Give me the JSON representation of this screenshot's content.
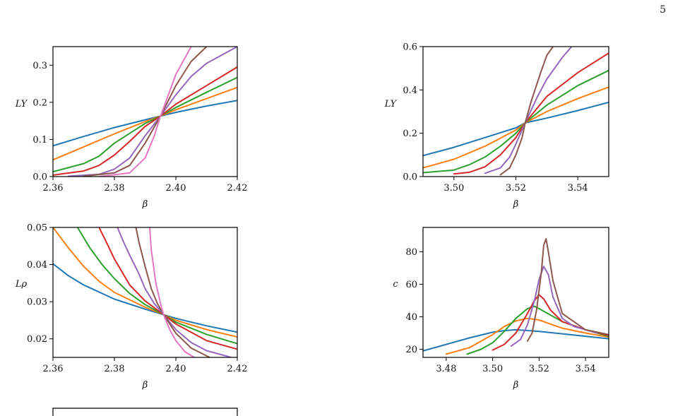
{
  "page": {
    "number": "5"
  },
  "colors": [
    "#1f77b4",
    "#ff7f0e",
    "#2ca02c",
    "#d62728",
    "#9467bd",
    "#8c564b",
    "#e377c2"
  ],
  "chart_data": [
    {
      "id": "top-left",
      "type": "line",
      "xlabel": "β",
      "ylabel": "LY",
      "xlim": [
        2.36,
        2.42
      ],
      "ylim": [
        0.0,
        0.35
      ],
      "xticks": [
        2.36,
        2.38,
        2.4,
        2.42
      ],
      "xtick_labels": [
        "2.36",
        "2.38",
        "2.40",
        "2.42"
      ],
      "yticks": [
        0.0,
        0.1,
        0.2,
        0.3
      ],
      "ytick_labels": [
        "0.0",
        "0.1",
        "0.2",
        "0.3"
      ],
      "series": [
        {
          "color": "#1f77b4",
          "x": [
            2.36,
            2.37,
            2.38,
            2.39,
            2.395,
            2.4,
            2.41,
            2.42
          ],
          "y": [
            0.083,
            0.108,
            0.132,
            0.153,
            0.163,
            0.173,
            0.19,
            0.205
          ]
        },
        {
          "color": "#ff7f0e",
          "x": [
            2.36,
            2.37,
            2.38,
            2.39,
            2.395,
            2.4,
            2.41,
            2.42
          ],
          "y": [
            0.045,
            0.08,
            0.115,
            0.148,
            0.163,
            0.18,
            0.21,
            0.24
          ]
        },
        {
          "color": "#2ca02c",
          "x": [
            2.36,
            2.37,
            2.375,
            2.38,
            2.39,
            2.395,
            2.4,
            2.41,
            2.42
          ],
          "y": [
            0.013,
            0.035,
            0.055,
            0.09,
            0.143,
            0.163,
            0.186,
            0.227,
            0.267
          ]
        },
        {
          "color": "#d62728",
          "x": [
            2.36,
            2.37,
            2.375,
            2.38,
            2.385,
            2.39,
            2.395,
            2.4,
            2.41,
            2.42
          ],
          "y": [
            0.004,
            0.015,
            0.03,
            0.058,
            0.095,
            0.135,
            0.163,
            0.195,
            0.245,
            0.295
          ]
        },
        {
          "color": "#9467bd",
          "x": [
            2.365,
            2.375,
            2.38,
            2.385,
            2.39,
            2.395,
            2.4,
            2.405,
            2.41,
            2.42
          ],
          "y": [
            0.001,
            0.006,
            0.02,
            0.05,
            0.11,
            0.163,
            0.22,
            0.27,
            0.305,
            0.35
          ]
        },
        {
          "color": "#8c564b",
          "x": [
            2.37,
            2.38,
            2.385,
            2.39,
            2.395,
            2.4,
            2.405,
            2.41
          ],
          "y": [
            0.001,
            0.01,
            0.03,
            0.09,
            0.163,
            0.245,
            0.31,
            0.35
          ]
        },
        {
          "color": "#e377c2",
          "x": [
            2.375,
            2.385,
            2.39,
            2.393,
            2.395,
            2.398,
            2.4,
            2.405
          ],
          "y": [
            0.0,
            0.01,
            0.05,
            0.11,
            0.163,
            0.23,
            0.275,
            0.35
          ]
        }
      ]
    },
    {
      "id": "top-right",
      "type": "line",
      "xlabel": "β",
      "ylabel": "LY",
      "xlim": [
        3.49,
        3.55
      ],
      "ylim": [
        0.0,
        0.6
      ],
      "xticks": [
        3.5,
        3.52,
        3.54
      ],
      "xtick_labels": [
        "3.50",
        "3.52",
        "3.54"
      ],
      "yticks": [
        0.0,
        0.2,
        0.4,
        0.6
      ],
      "ytick_labels": [
        "0.0",
        "0.2",
        "0.4",
        "0.6"
      ],
      "series": [
        {
          "color": "#1f77b4",
          "x": [
            3.49,
            3.5,
            3.51,
            3.52,
            3.523,
            3.53,
            3.54,
            3.55
          ],
          "y": [
            0.097,
            0.135,
            0.18,
            0.225,
            0.248,
            0.27,
            0.305,
            0.343
          ]
        },
        {
          "color": "#ff7f0e",
          "x": [
            3.49,
            3.5,
            3.51,
            3.52,
            3.523,
            3.53,
            3.54,
            3.55
          ],
          "y": [
            0.04,
            0.08,
            0.14,
            0.215,
            0.248,
            0.3,
            0.36,
            0.413
          ]
        },
        {
          "color": "#2ca02c",
          "x": [
            3.49,
            3.5,
            3.505,
            3.51,
            3.515,
            3.52,
            3.523,
            3.53,
            3.54,
            3.55
          ],
          "y": [
            0.018,
            0.03,
            0.055,
            0.09,
            0.14,
            0.2,
            0.248,
            0.33,
            0.42,
            0.49
          ]
        },
        {
          "color": "#d62728",
          "x": [
            3.5,
            3.505,
            3.51,
            3.515,
            3.52,
            3.523,
            3.53,
            3.54,
            3.55
          ],
          "y": [
            0.012,
            0.02,
            0.045,
            0.1,
            0.18,
            0.248,
            0.37,
            0.48,
            0.57
          ]
        },
        {
          "color": "#9467bd",
          "x": [
            3.51,
            3.515,
            3.518,
            3.52,
            3.523,
            3.527,
            3.53,
            3.535,
            3.538
          ],
          "y": [
            0.015,
            0.04,
            0.09,
            0.15,
            0.248,
            0.37,
            0.45,
            0.55,
            0.6
          ]
        },
        {
          "color": "#8c564b",
          "x": [
            3.515,
            3.518,
            3.52,
            3.522,
            3.523,
            3.525,
            3.528,
            3.53,
            3.532
          ],
          "y": [
            0.008,
            0.04,
            0.1,
            0.18,
            0.248,
            0.35,
            0.48,
            0.56,
            0.6
          ]
        }
      ]
    },
    {
      "id": "middle-left",
      "type": "line",
      "xlabel": "β",
      "ylabel": "Lρ",
      "xlim": [
        2.36,
        2.42
      ],
      "ylim": [
        0.015,
        0.05
      ],
      "xticks": [
        2.36,
        2.38,
        2.4,
        2.42
      ],
      "xtick_labels": [
        "2.36",
        "2.38",
        "2.40",
        "2.42"
      ],
      "yticks": [
        0.02,
        0.03,
        0.04,
        0.05
      ],
      "ytick_labels": [
        "0.02",
        "0.03",
        "0.04",
        "0.05"
      ],
      "series": [
        {
          "color": "#1f77b4",
          "x": [
            2.36,
            2.365,
            2.37,
            2.38,
            2.39,
            2.396,
            2.4,
            2.41,
            2.42
          ],
          "y": [
            0.0402,
            0.037,
            0.0345,
            0.0307,
            0.028,
            0.0265,
            0.0255,
            0.0235,
            0.0218
          ]
        },
        {
          "color": "#ff7f0e",
          "x": [
            2.36,
            2.365,
            2.37,
            2.375,
            2.38,
            2.39,
            2.396,
            2.4,
            2.41,
            2.42
          ],
          "y": [
            0.05,
            0.0445,
            0.0395,
            0.0355,
            0.0325,
            0.0285,
            0.0265,
            0.025,
            0.0225,
            0.0205
          ]
        },
        {
          "color": "#2ca02c",
          "x": [
            2.368,
            2.372,
            2.376,
            2.38,
            2.385,
            2.39,
            2.396,
            2.4,
            2.41,
            2.42
          ],
          "y": [
            0.05,
            0.0445,
            0.04,
            0.0362,
            0.0322,
            0.0292,
            0.0265,
            0.0245,
            0.0212,
            0.0187
          ]
        },
        {
          "color": "#d62728",
          "x": [
            2.375,
            2.378,
            2.38,
            2.385,
            2.39,
            2.396,
            2.4,
            2.41,
            2.42
          ],
          "y": [
            0.05,
            0.045,
            0.0415,
            0.0345,
            0.0302,
            0.0265,
            0.024,
            0.0195,
            0.0172
          ]
        },
        {
          "color": "#9467bd",
          "x": [
            2.381,
            2.383,
            2.385,
            2.388,
            2.39,
            2.393,
            2.396,
            2.4,
            2.405,
            2.41,
            2.418
          ],
          "y": [
            0.05,
            0.046,
            0.0425,
            0.0375,
            0.0335,
            0.0295,
            0.0265,
            0.0225,
            0.019,
            0.0168,
            0.015
          ]
        },
        {
          "color": "#8c564b",
          "x": [
            2.387,
            2.388,
            2.39,
            2.392,
            2.394,
            2.396,
            2.4,
            2.405,
            2.411
          ],
          "y": [
            0.05,
            0.046,
            0.0395,
            0.0335,
            0.0295,
            0.0265,
            0.0215,
            0.0175,
            0.015
          ]
        },
        {
          "color": "#e377c2",
          "x": [
            2.3915,
            2.392,
            2.3935,
            2.395,
            2.396,
            2.398,
            2.4,
            2.403,
            2.406
          ],
          "y": [
            0.05,
            0.044,
            0.035,
            0.0295,
            0.0265,
            0.0225,
            0.0195,
            0.0165,
            0.015
          ]
        }
      ]
    },
    {
      "id": "middle-right",
      "type": "line",
      "xlabel": "β",
      "ylabel": "c",
      "xlim": [
        3.47,
        3.55
      ],
      "ylim": [
        15,
        95
      ],
      "xticks": [
        3.48,
        3.5,
        3.52,
        3.54
      ],
      "xtick_labels": [
        "3.48",
        "3.50",
        "3.52",
        "3.54"
      ],
      "yticks": [
        20,
        40,
        60,
        80
      ],
      "ytick_labels": [
        "20",
        "40",
        "60",
        "80"
      ],
      "series": [
        {
          "color": "#1f77b4",
          "x": [
            3.47,
            3.48,
            3.49,
            3.5,
            3.505,
            3.51,
            3.52,
            3.53,
            3.54,
            3.55
          ],
          "y": [
            19,
            23,
            27,
            30.5,
            31.5,
            32,
            31,
            29.5,
            28,
            26.5
          ]
        },
        {
          "color": "#ff7f0e",
          "x": [
            3.48,
            3.49,
            3.5,
            3.505,
            3.51,
            3.515,
            3.52,
            3.525,
            3.53,
            3.54,
            3.55
          ],
          "y": [
            17,
            21,
            29,
            34,
            37.5,
            39,
            38,
            35.5,
            33,
            30,
            27.5
          ]
        },
        {
          "color": "#2ca02c",
          "x": [
            3.489,
            3.495,
            3.5,
            3.505,
            3.51,
            3.515,
            3.518,
            3.52,
            3.525,
            3.53,
            3.54,
            3.55
          ],
          "y": [
            17,
            20,
            24,
            31,
            39,
            45,
            46.5,
            45,
            41,
            37,
            32,
            28
          ]
        },
        {
          "color": "#d62728",
          "x": [
            3.5,
            3.505,
            3.51,
            3.515,
            3.518,
            3.52,
            3.522,
            3.525,
            3.53,
            3.54,
            3.55
          ],
          "y": [
            19.5,
            23,
            30,
            42,
            50,
            53.5,
            51,
            44,
            37,
            32,
            28.5
          ]
        },
        {
          "color": "#9467bd",
          "x": [
            3.508,
            3.512,
            3.515,
            3.518,
            3.52,
            3.522,
            3.524,
            3.526,
            3.53,
            3.535,
            3.545
          ],
          "y": [
            22,
            26,
            35,
            50,
            63,
            71,
            66,
            52,
            39,
            34,
            30
          ]
        },
        {
          "color": "#8c564b",
          "x": [
            3.515,
            3.517,
            3.519,
            3.521,
            3.522,
            3.523,
            3.524,
            3.526,
            3.53,
            3.54,
            3.55
          ],
          "y": [
            25,
            30,
            45,
            68,
            84,
            88,
            80,
            62,
            42,
            32,
            29
          ]
        }
      ]
    },
    {
      "id": "bottom-left-partial",
      "type": "line",
      "series": []
    }
  ]
}
